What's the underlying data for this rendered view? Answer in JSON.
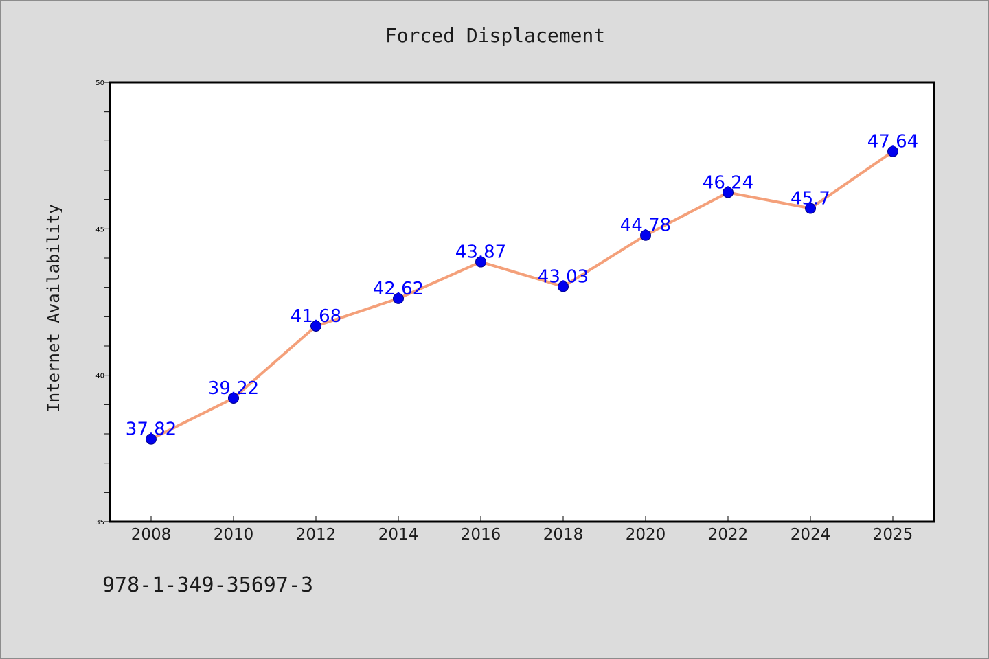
{
  "page": {
    "title": "Forced Displacement",
    "caption": "978-1-349-35697-3"
  },
  "colors": {
    "background": "#dcdcdc",
    "plot_background": "#ffffff",
    "line": "#f4a07a",
    "marker": "#0000ee",
    "label": "#0000ff"
  },
  "chart_data": {
    "type": "line",
    "title": "Forced Displacement",
    "xlabel": "",
    "ylabel": "Internet Availability",
    "categories": [
      "2008",
      "2010",
      "2012",
      "2014",
      "2016",
      "2018",
      "2020",
      "2022",
      "2024",
      "2025"
    ],
    "series": [
      {
        "values": [
          37.82,
          39.22,
          41.68,
          42.62,
          43.87,
          43.03,
          44.78,
          46.24,
          45.7,
          47.64
        ],
        "data_labels": [
          "37.82",
          "39.22",
          "41.68",
          "42.62",
          "43.87",
          "43.03",
          "44.78",
          "46.24",
          "45.7",
          "47.64"
        ]
      }
    ],
    "ylim": [
      35,
      50
    ],
    "y_major_ticks": [
      35,
      40,
      45,
      50
    ],
    "y_minor_step": 1,
    "grid": false,
    "legend": "none"
  }
}
